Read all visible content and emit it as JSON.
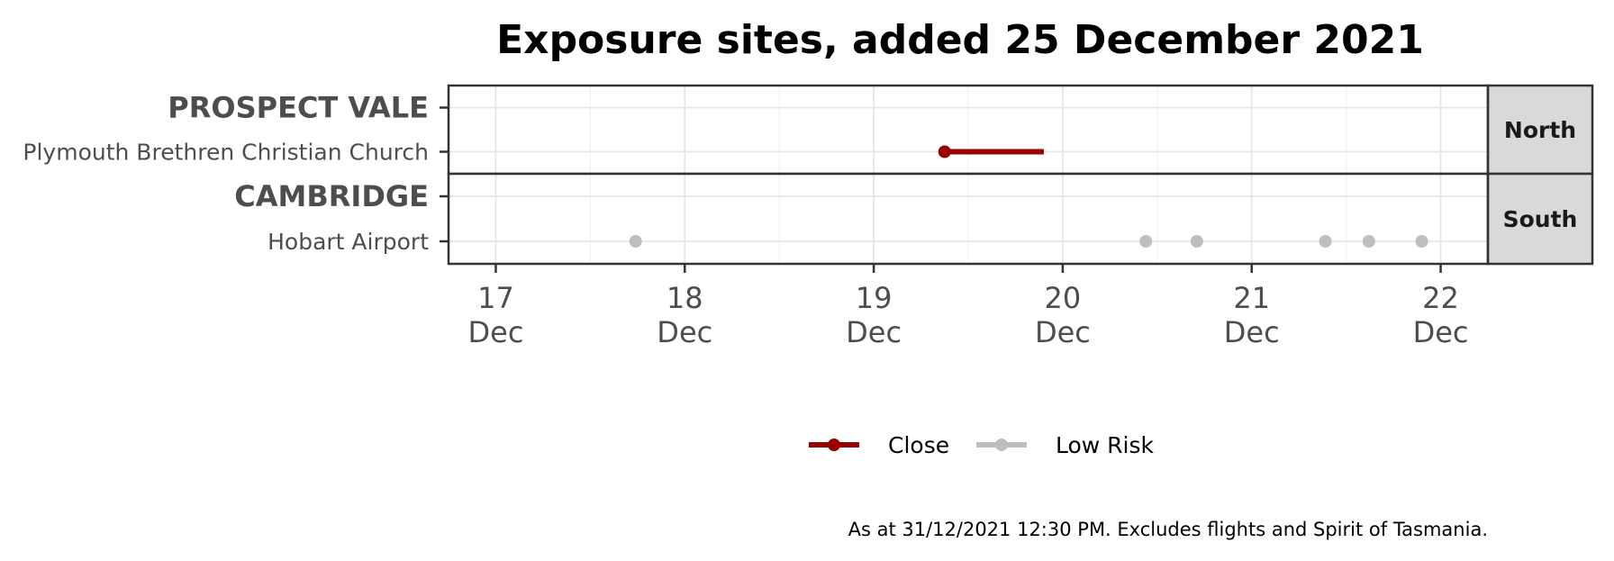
{
  "chart_data": {
    "type": "timeline",
    "title": "Exposure sites, added 25 December 2021",
    "caption": "As at 31/12/2021 12:30 PM. Excludes flights and Spirit of Tasmania.",
    "x_ticks": [
      {
        "value": 17,
        "line1": "17",
        "line2": "Dec"
      },
      {
        "value": 18,
        "line1": "18",
        "line2": "Dec"
      },
      {
        "value": 19,
        "line1": "19",
        "line2": "Dec"
      },
      {
        "value": 20,
        "line1": "20",
        "line2": "Dec"
      },
      {
        "value": 21,
        "line1": "21",
        "line2": "Dec"
      },
      {
        "value": 22,
        "line1": "22",
        "line2": "Dec"
      }
    ],
    "xlim": [
      16.75,
      22.25
    ],
    "grid": true,
    "legend_position": "bottom",
    "series": [
      {
        "name": "Close",
        "color": "#990000"
      },
      {
        "name": "Low Risk",
        "color": "#bebebe"
      }
    ],
    "panels": [
      {
        "region": "North",
        "rows": [
          {
            "label": "PROSPECT VALE",
            "kind": "suburb"
          },
          {
            "label": "Plymouth Brethren Christian Church",
            "kind": "site"
          }
        ],
        "exposures": [
          {
            "site": "Plymouth Brethren Christian Church",
            "series": "Close",
            "start": 19.375,
            "end": 19.9
          }
        ]
      },
      {
        "region": "South",
        "rows": [
          {
            "label": "CAMBRIDGE",
            "kind": "suburb"
          },
          {
            "label": "Hobart Airport",
            "kind": "site"
          }
        ],
        "exposures": [
          {
            "site": "Hobart Airport",
            "series": "Low Risk",
            "start": 17.74,
            "end": 17.74
          },
          {
            "site": "Hobart Airport",
            "series": "Low Risk",
            "start": 20.44,
            "end": 20.44
          },
          {
            "site": "Hobart Airport",
            "series": "Low Risk",
            "start": 20.71,
            "end": 20.71
          },
          {
            "site": "Hobart Airport",
            "series": "Low Risk",
            "start": 21.39,
            "end": 21.39
          },
          {
            "site": "Hobart Airport",
            "series": "Low Risk",
            "start": 21.62,
            "end": 21.62
          },
          {
            "site": "Hobart Airport",
            "series": "Low Risk",
            "start": 21.9,
            "end": 21.9
          }
        ]
      }
    ]
  }
}
